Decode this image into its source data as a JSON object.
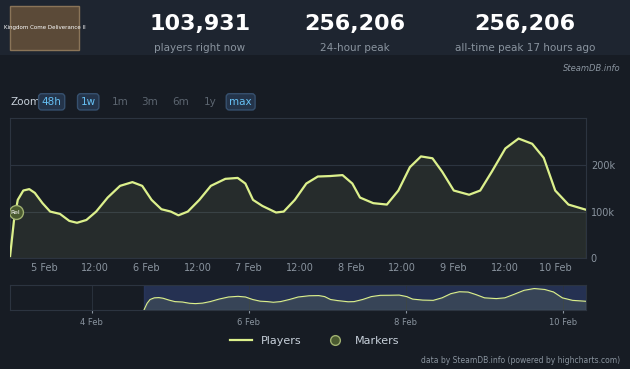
{
  "header": {
    "game": "Kingdom Come Deliverance II",
    "stats": [
      {
        "value": "103,931",
        "label": "players right now"
      },
      {
        "value": "256,206",
        "label": "24-hour peak"
      },
      {
        "value": "256,206",
        "label": "all-time peak 17 hours ago"
      }
    ],
    "source": "SteamDB.info"
  },
  "zoom": {
    "label": "Zoom",
    "buttons": [
      "48h",
      "1w",
      "1m",
      "3m",
      "6m",
      "1y",
      "max"
    ],
    "active": [
      "48h",
      "1w",
      "max"
    ]
  },
  "chart_data": {
    "type": "line",
    "x": [
      16.0,
      16.9,
      17.8,
      19.1,
      20.5,
      21.8,
      23.6,
      25.4,
      27.7,
      29.9,
      31.7,
      33.9,
      36.2,
      38.9,
      41.8,
      44.7,
      47.0,
      49.2,
      51.5,
      53.7,
      55.5,
      57.7,
      60.4,
      63.1,
      66.5,
      69.4,
      71.2,
      73.0,
      75.2,
      78.4,
      80.2,
      82.8,
      85.5,
      88.2,
      91.1,
      94.0,
      96.3,
      98.1,
      101.2,
      104.4,
      107.1,
      109.8,
      112.4,
      115.1,
      117.4,
      120.1,
      123.7,
      126.3,
      129.0,
      132.2,
      135.3,
      138.5,
      141.2,
      143.9,
      147.0,
      151.1
    ],
    "series": [
      {
        "name": "Players",
        "color": "#dcf08c",
        "values": [
          5000,
          80000,
          125000,
          145000,
          148000,
          140000,
          118000,
          100000,
          95000,
          80000,
          76000,
          82000,
          100000,
          130000,
          155000,
          163000,
          155000,
          125000,
          105000,
          100000,
          92000,
          100000,
          125000,
          155000,
          170000,
          172000,
          160000,
          125000,
          112000,
          98000,
          100000,
          125000,
          160000,
          175000,
          176000,
          178000,
          160000,
          130000,
          118000,
          115000,
          145000,
          195000,
          218000,
          214000,
          185000,
          145000,
          136000,
          145000,
          185000,
          235000,
          256206,
          245000,
          215000,
          145000,
          115000,
          103931
        ]
      }
    ],
    "markers": {
      "name": "Markers",
      "color": "#4a5a30",
      "x": [
        17.3
      ],
      "labels": [
        "Rel"
      ]
    },
    "xlim": [
      16.0,
      151.1
    ],
    "xticks": [
      {
        "value": 24,
        "label": "5 Feb"
      },
      {
        "value": 36,
        "label": "12:00"
      },
      {
        "value": 48,
        "label": "6 Feb"
      },
      {
        "value": 60,
        "label": "12:00"
      },
      {
        "value": 72,
        "label": "7 Feb"
      },
      {
        "value": 84,
        "label": "12:00"
      },
      {
        "value": 96,
        "label": "8 Feb"
      },
      {
        "value": 108,
        "label": "12:00"
      },
      {
        "value": 120,
        "label": "9 Feb"
      },
      {
        "value": 132,
        "label": "12:00"
      },
      {
        "value": 144,
        "label": "10 Feb"
      }
    ],
    "ylim": [
      0,
      300000
    ],
    "yticks": [
      0,
      {
        "value": 100000,
        "label": "100k"
      },
      {
        "value": 200000,
        "label": "200k"
      }
    ],
    "grid": true,
    "legend": "lower center",
    "navigator": {
      "xlim": [
        -25,
        151.1
      ],
      "ylim": [
        0,
        300000
      ],
      "tick_labels": "x",
      "xticks": [
        {
          "value": 0,
          "label": "4 Feb"
        },
        {
          "value": 48,
          "label": "6 Feb"
        },
        {
          "value": 96,
          "label": "8 Feb"
        },
        {
          "value": 144,
          "label": "10 Feb"
        }
      ]
    }
  },
  "credit": "data by SteamDB.info (powered by highcharts.com)"
}
